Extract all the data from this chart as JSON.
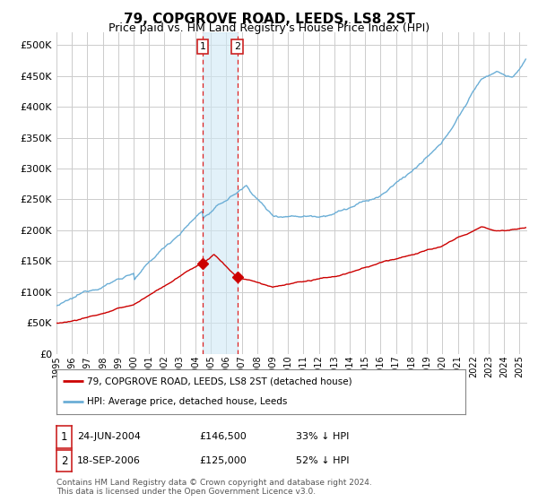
{
  "title": "79, COPGROVE ROAD, LEEDS, LS8 2ST",
  "subtitle": "Price paid vs. HM Land Registry's House Price Index (HPI)",
  "ytick_values": [
    0,
    50000,
    100000,
    150000,
    200000,
    250000,
    300000,
    350000,
    400000,
    450000,
    500000
  ],
  "ylim": [
    0,
    520000
  ],
  "xlim_start": 1995.0,
  "xlim_end": 2025.5,
  "hpi_color": "#6baed6",
  "sale_color": "#cc0000",
  "marker1_date_x": 2004.48,
  "marker2_date_x": 2006.72,
  "marker1_sale_y": 146500,
  "marker2_sale_y": 125000,
  "legend_line1": "79, COPGROVE ROAD, LEEDS, LS8 2ST (detached house)",
  "legend_line2": "HPI: Average price, detached house, Leeds",
  "footnote": "Contains HM Land Registry data © Crown copyright and database right 2024.\nThis data is licensed under the Open Government Licence v3.0.",
  "background_color": "#ffffff",
  "grid_color": "#cccccc"
}
